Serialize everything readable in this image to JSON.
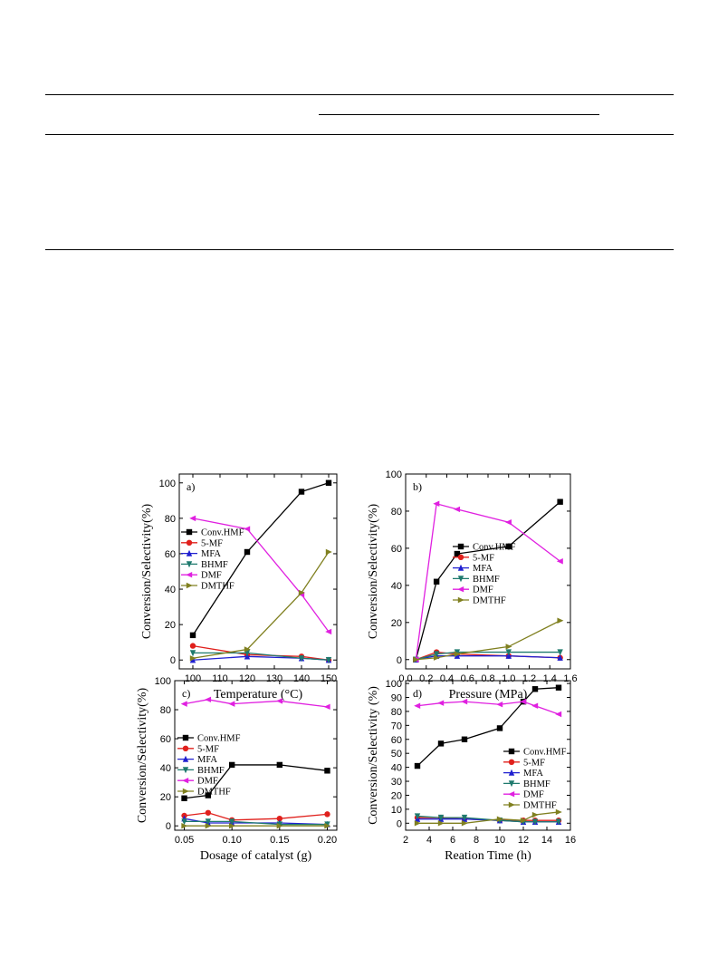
{
  "document": {
    "table_rules": "four horizontal rules of an empty table"
  },
  "series_colors": {
    "Conv.HMF": "#000000",
    "5-MF": "#e0201c",
    "MFA": "#2020d0",
    "BHMF": "#1f7a6e",
    "DMF": "#e020e0",
    "DMTHF": "#808020"
  },
  "chart_data": [
    {
      "type": "line",
      "panel_label": "a)",
      "xlabel": "Temperature (°C)",
      "ylabel": "Conversion/Selectivity(%)",
      "xlim": [
        95,
        153
      ],
      "ylim": [
        -5,
        105
      ],
      "xticks": [
        100,
        110,
        120,
        130,
        140,
        150
      ],
      "yticks": [
        0,
        20,
        40,
        60,
        80,
        100
      ],
      "legend_position": "left-middle",
      "series": [
        {
          "name": "Conv.HMF",
          "x": [
            100,
            120,
            140,
            150
          ],
          "y": [
            14,
            61,
            95,
            100
          ]
        },
        {
          "name": "5-MF",
          "x": [
            100,
            120,
            140,
            150
          ],
          "y": [
            8,
            3,
            2,
            0
          ]
        },
        {
          "name": "MFA",
          "x": [
            100,
            120,
            140,
            150
          ],
          "y": [
            0,
            2,
            1,
            0
          ]
        },
        {
          "name": "BHMF",
          "x": [
            100,
            120,
            140,
            150
          ],
          "y": [
            4,
            4,
            1,
            0
          ]
        },
        {
          "name": "DMF",
          "x": [
            100,
            120,
            140,
            150
          ],
          "y": [
            80,
            74,
            37,
            16
          ]
        },
        {
          "name": "DMTHF",
          "x": [
            100,
            120,
            140,
            150
          ],
          "y": [
            1,
            6,
            38,
            61
          ]
        }
      ]
    },
    {
      "type": "line",
      "panel_label": "b)",
      "xlabel": "Pressure (MPa)",
      "ylabel": "Conversion/Selectivity(%)",
      "xlim": [
        0,
        1.6
      ],
      "ylim": [
        -5,
        100
      ],
      "xticks": [
        0.0,
        0.2,
        0.4,
        0.6,
        0.8,
        1.0,
        1.2,
        1.4,
        1.6
      ],
      "yticks": [
        0,
        20,
        40,
        60,
        80,
        100
      ],
      "legend_position": "right-middle",
      "series": [
        {
          "name": "Conv.HMF",
          "x": [
            0.1,
            0.3,
            0.5,
            1.0,
            1.5
          ],
          "y": [
            0,
            42,
            57,
            61,
            85
          ]
        },
        {
          "name": "5-MF",
          "x": [
            0.1,
            0.3,
            0.5,
            1.0,
            1.5
          ],
          "y": [
            0,
            4,
            3,
            2,
            1
          ]
        },
        {
          "name": "MFA",
          "x": [
            0.1,
            0.3,
            0.5,
            1.0,
            1.5
          ],
          "y": [
            0,
            2,
            2,
            2,
            1
          ]
        },
        {
          "name": "BHMF",
          "x": [
            0.1,
            0.3,
            0.5,
            1.0,
            1.5
          ],
          "y": [
            0,
            3,
            4,
            4,
            4
          ]
        },
        {
          "name": "DMF",
          "x": [
            0.1,
            0.3,
            0.5,
            1.0,
            1.5
          ],
          "y": [
            0,
            84,
            81,
            74,
            53
          ]
        },
        {
          "name": "DMTHF",
          "x": [
            0.1,
            0.3,
            0.5,
            1.0,
            1.5
          ],
          "y": [
            0,
            1,
            3,
            7,
            21
          ]
        }
      ]
    },
    {
      "type": "line",
      "panel_label": "c)",
      "xlabel": "Dosage of catalyst (g)",
      "ylabel": "Conversion/Selectivity(%)",
      "xlim": [
        0.04,
        0.21
      ],
      "ylim": [
        -3,
        100
      ],
      "xticks": [
        0.05,
        0.1,
        0.15,
        0.2
      ],
      "yticks": [
        0,
        20,
        40,
        60,
        80,
        100
      ],
      "legend_position": "left-middle",
      "series": [
        {
          "name": "Conv.HMF",
          "x": [
            0.05,
            0.075,
            0.1,
            0.15,
            0.2
          ],
          "y": [
            19,
            21,
            42,
            42,
            38
          ]
        },
        {
          "name": "5-MF",
          "x": [
            0.05,
            0.075,
            0.1,
            0.15,
            0.2
          ],
          "y": [
            7,
            9,
            4,
            5,
            8
          ]
        },
        {
          "name": "MFA",
          "x": [
            0.05,
            0.075,
            0.1,
            0.15,
            0.2
          ],
          "y": [
            5,
            2,
            2,
            2,
            1
          ]
        },
        {
          "name": "BHMF",
          "x": [
            0.05,
            0.075,
            0.1,
            0.15,
            0.2
          ],
          "y": [
            3,
            3,
            3,
            1,
            1
          ]
        },
        {
          "name": "DMF",
          "x": [
            0.05,
            0.075,
            0.1,
            0.15,
            0.2
          ],
          "y": [
            84,
            87,
            84,
            86,
            82
          ]
        },
        {
          "name": "DMTHF",
          "x": [
            0.05,
            0.075,
            0.1,
            0.15,
            0.2
          ],
          "y": [
            0,
            0,
            0,
            0,
            0
          ]
        }
      ]
    },
    {
      "type": "line",
      "panel_label": "d)",
      "xlabel": "Reation Time (h)",
      "ylabel": "Conversion/Selectivity (%)",
      "xlim": [
        2,
        16
      ],
      "ylim": [
        -5,
        102
      ],
      "xticks": [
        2,
        4,
        6,
        8,
        10,
        12,
        14,
        16
      ],
      "yticks": [
        0,
        10,
        20,
        30,
        40,
        50,
        60,
        70,
        80,
        90,
        100
      ],
      "legend_position": "right-middle",
      "series": [
        {
          "name": "Conv.HMF",
          "x": [
            3,
            5,
            7,
            10,
            12,
            13,
            15
          ],
          "y": [
            41,
            57,
            60,
            68,
            87,
            96,
            97
          ]
        },
        {
          "name": "5-MF",
          "x": [
            3,
            5,
            7,
            10,
            12,
            13,
            15
          ],
          "y": [
            4,
            4,
            3,
            2,
            2,
            2,
            2
          ]
        },
        {
          "name": "MFA",
          "x": [
            3,
            5,
            7,
            10,
            12,
            13,
            15
          ],
          "y": [
            3,
            3,
            3,
            2,
            1,
            1,
            1
          ]
        },
        {
          "name": "BHMF",
          "x": [
            3,
            5,
            7,
            10,
            12,
            13,
            15
          ],
          "y": [
            5,
            4,
            4,
            2,
            1,
            1,
            1
          ]
        },
        {
          "name": "DMF",
          "x": [
            3,
            5,
            7,
            10,
            12,
            13,
            15
          ],
          "y": [
            84,
            86,
            87,
            85,
            87,
            84,
            78
          ]
        },
        {
          "name": "DMTHF",
          "x": [
            3,
            5,
            7,
            10,
            12,
            13,
            15
          ],
          "y": [
            0,
            0,
            0,
            3,
            2,
            6,
            8
          ]
        }
      ]
    }
  ]
}
